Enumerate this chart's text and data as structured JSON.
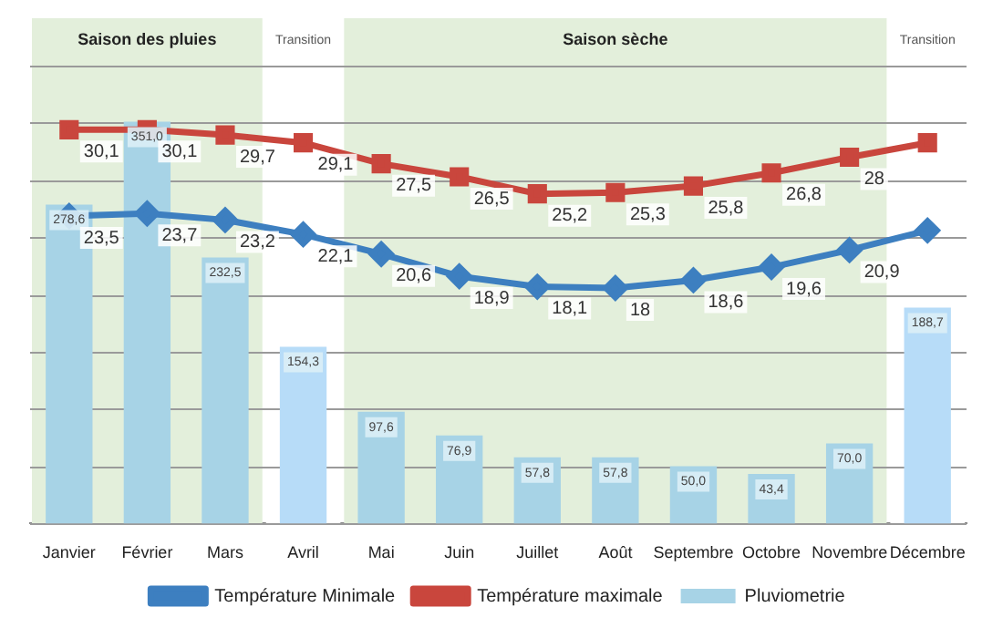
{
  "chart_data": {
    "type": "bar",
    "categories": [
      "Janvier",
      "Février",
      "Mars",
      "Avril",
      "Mai",
      "Juin",
      "Juillet",
      "Août",
      "Septembre",
      "Octobre",
      "Novembre",
      "Décembre"
    ],
    "series": [
      {
        "name": "Pluviometrie",
        "type": "bar",
        "colors": [
          "#a7d3e6",
          "#a7d3e6",
          "#a7d3e6",
          "#b7dcf8",
          "#a7d3e6",
          "#a7d3e6",
          "#a7d3e6",
          "#a7d3e6",
          "#a7d3e6",
          "#a7d3e6",
          "#a7d3e6",
          "#b7dcf8"
        ],
        "values": [
          278.6,
          351.0,
          232.5,
          154.3,
          97.6,
          76.9,
          57.8,
          57.8,
          50.0,
          43.4,
          70.0,
          188.7
        ],
        "value_labels": [
          "278,6",
          "351,0",
          "232,5",
          "154,3",
          "97,6",
          "76,9",
          "57,8",
          "57,8",
          "50,0",
          "43,4",
          "70,0",
          "188,7"
        ]
      },
      {
        "name": "Température Minimale",
        "type": "line",
        "axis": "y2",
        "color": "#3d7fc0",
        "marker": "diamond",
        "values": [
          23.5,
          23.7,
          23.2,
          22.1,
          20.6,
          18.9,
          18.1,
          18,
          18.6,
          19.6,
          20.9,
          22.4
        ],
        "value_labels": [
          "23,5",
          "23,7",
          "23,2",
          "22,1",
          "20,6",
          "18,9",
          "18,1",
          "18",
          "18,6",
          "19,6",
          "20,9",
          null
        ]
      },
      {
        "name": "Température maximale",
        "type": "line",
        "axis": "y2",
        "color": "#c9463d",
        "marker": "square",
        "values": [
          30.1,
          30.1,
          29.7,
          29.1,
          27.5,
          26.5,
          25.2,
          25.3,
          25.8,
          26.8,
          28,
          29.1
        ],
        "value_labels": [
          "30,1",
          "30,1",
          "29,7",
          "29,1",
          "27,5",
          "26,5",
          "25,2",
          "25,3",
          "25,8",
          "26,8",
          "28",
          null
        ]
      }
    ],
    "bands": [
      {
        "axis": "x",
        "from": "Janvier",
        "to": "Mars",
        "label": "Saison des pluies",
        "color": "#e3efdb"
      },
      {
        "axis": "x",
        "from": "Avril",
        "to": "Avril",
        "label": "Transition",
        "color": "#ffffff"
      },
      {
        "axis": "x",
        "from": "Mai",
        "to": "Novembre",
        "label": "Saison sèche",
        "color": "#e3efdb"
      },
      {
        "axis": "x",
        "from": "Décembre",
        "to": "Décembre",
        "label": "Transition",
        "color": "#ffffff"
      }
    ],
    "grid": "y",
    "legend": "bottom",
    "tick_labels": "x"
  }
}
